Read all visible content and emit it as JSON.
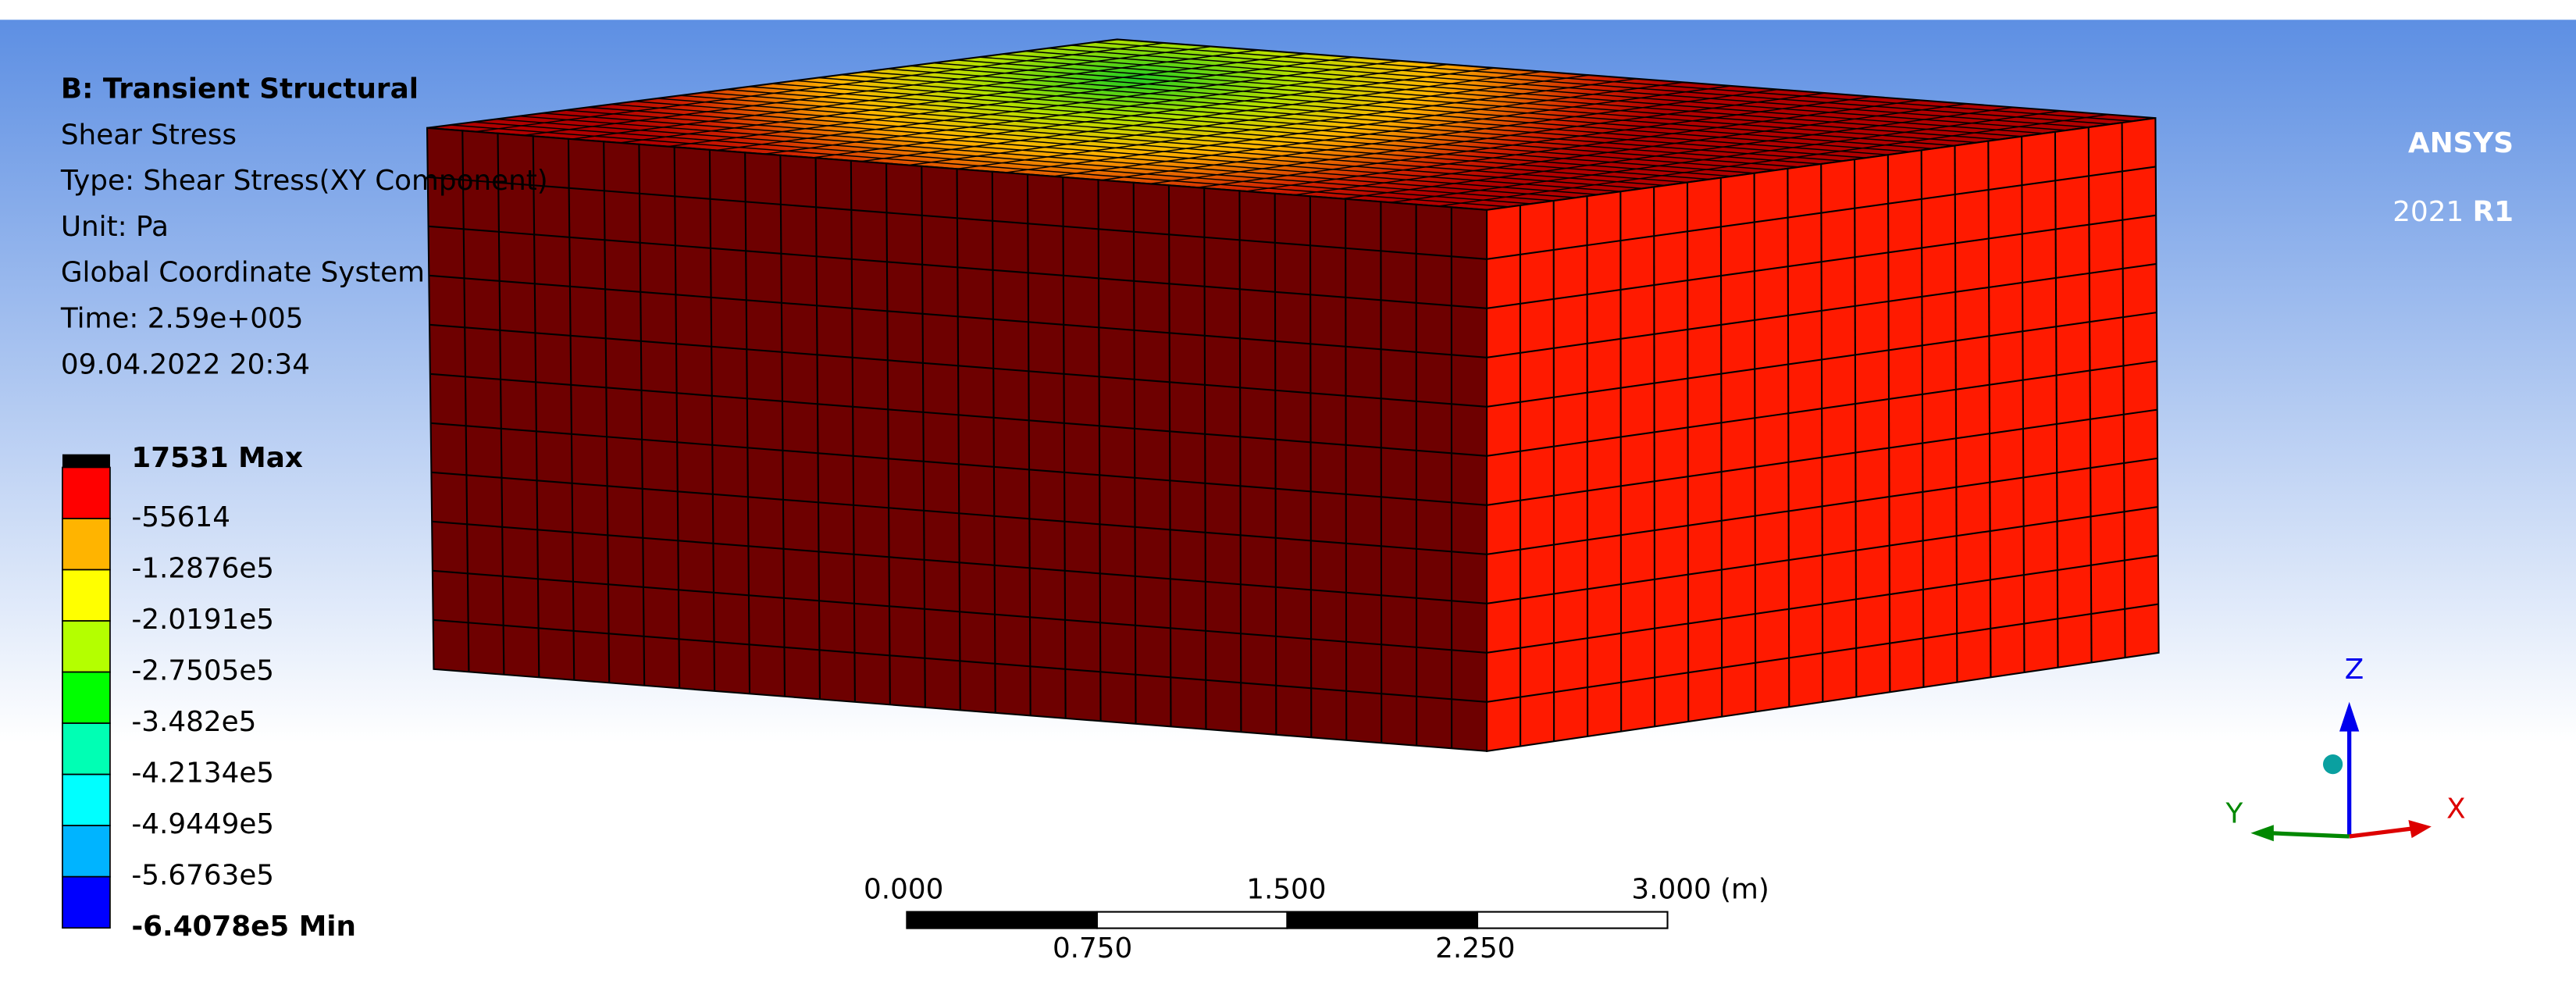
{
  "header": {
    "lines": [
      "B: Transient Structural",
      "Shear Stress",
      "Type: Shear Stress(XY Component)",
      "Unit: Pa",
      "Global Coordinate System",
      "Time: 2.59e+005",
      "09.04.2022 20:34"
    ]
  },
  "legend": {
    "labels": [
      "17531 Max",
      "-55614",
      "-1.2876e5",
      "-2.0191e5",
      "-2.7505e5",
      "-3.482e5",
      "-4.2134e5",
      "-4.9449e5",
      "-5.6763e5",
      "-6.4078e5 Min"
    ],
    "colors": [
      "#ff0000",
      "#ffb400",
      "#ffff00",
      "#b4ff00",
      "#00ff00",
      "#00ffb4",
      "#00ffff",
      "#00b4ff",
      "#0000ff"
    ]
  },
  "scale_bar": {
    "top_labels": [
      "0.000",
      "1.500",
      "3.000 (m)"
    ],
    "bottom_labels": [
      "0.750",
      "2.250"
    ]
  },
  "logo": {
    "name": "ANSYS",
    "version": "2021",
    "release": "R1"
  },
  "triad": {
    "x": "X",
    "y": "Y",
    "z": "Z"
  }
}
